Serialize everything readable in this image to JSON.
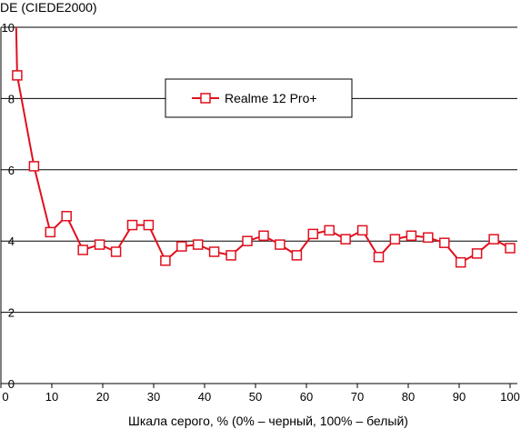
{
  "chart_data": {
    "type": "line",
    "ylabel": "DE (CIEDE2000)",
    "xlabel": "Шкала серого, % (0% – черный, 100% – белый)",
    "xlim": [
      0,
      100
    ],
    "ylim": [
      0,
      10
    ],
    "xticks": [
      0,
      10,
      20,
      30,
      40,
      50,
      60,
      70,
      80,
      90,
      100
    ],
    "yticks": [
      0,
      2,
      4,
      6,
      8,
      10
    ],
    "grid": "horizontal",
    "legend_position": "top-center",
    "series": [
      {
        "name": "Realme 12 Pro+",
        "color": "#e0101e",
        "marker": "square-open",
        "x": [
          3.2,
          6.5,
          9.7,
          12.9,
          16.1,
          19.4,
          22.6,
          25.8,
          29.0,
          32.3,
          35.5,
          38.7,
          41.9,
          45.2,
          48.4,
          51.6,
          54.8,
          58.1,
          61.3,
          64.5,
          67.7,
          71.0,
          74.2,
          77.4,
          80.6,
          83.9,
          87.1,
          90.3,
          93.5,
          96.8,
          100
        ],
        "y": [
          8.65,
          6.1,
          4.25,
          4.7,
          3.75,
          3.9,
          3.7,
          4.45,
          4.45,
          3.45,
          3.85,
          3.9,
          3.7,
          3.6,
          4.0,
          4.15,
          3.9,
          3.6,
          4.2,
          4.3,
          4.05,
          4.3,
          3.55,
          4.05,
          4.15,
          4.1,
          3.95,
          3.4,
          3.65,
          4.05,
          3.8
        ],
        "lead_in": {
          "x": [
            3.0
          ],
          "y": [
            10
          ]
        }
      }
    ]
  }
}
